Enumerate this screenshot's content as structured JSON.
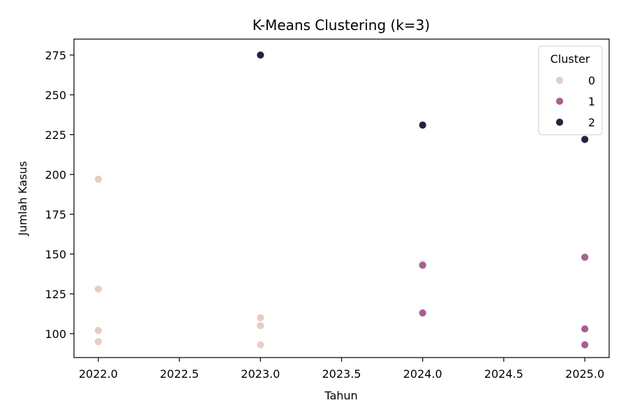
{
  "chart_data": {
    "type": "scatter",
    "title": "K-Means Clustering (k=3)",
    "xlabel": "Tahun",
    "ylabel": "Jumlah Kasus",
    "xlim": [
      2021.85,
      2025.15
    ],
    "ylim": [
      85,
      285
    ],
    "xticks": [
      2022.0,
      2022.5,
      2023.0,
      2023.5,
      2024.0,
      2024.5,
      2025.0
    ],
    "xtick_labels": [
      "2022.0",
      "2022.5",
      "2023.0",
      "2023.5",
      "2024.0",
      "2024.5",
      "2025.0"
    ],
    "yticks": [
      100,
      125,
      150,
      175,
      200,
      225,
      250,
      275
    ],
    "ytick_labels": [
      "100",
      "125",
      "150",
      "175",
      "200",
      "225",
      "250",
      "275"
    ],
    "grid": false,
    "legend": {
      "title": "Cluster",
      "placement": "top-right",
      "entries": [
        "0",
        "1",
        "2"
      ]
    },
    "series": [
      {
        "name": "0",
        "color": "#e8cdc5",
        "points": [
          {
            "x": 2022,
            "y": 197
          },
          {
            "x": 2022,
            "y": 128
          },
          {
            "x": 2022,
            "y": 102
          },
          {
            "x": 2022,
            "y": 95
          },
          {
            "x": 2023,
            "y": 110
          },
          {
            "x": 2023,
            "y": 105
          },
          {
            "x": 2023,
            "y": 93
          },
          {
            "x": 2024,
            "y": 144
          }
        ]
      },
      {
        "name": "1",
        "color": "#a5628e",
        "points": [
          {
            "x": 2024,
            "y": 143
          },
          {
            "x": 2024,
            "y": 113
          },
          {
            "x": 2025,
            "y": 148
          },
          {
            "x": 2025,
            "y": 103
          },
          {
            "x": 2025,
            "y": 93
          }
        ]
      },
      {
        "name": "2",
        "color": "#2c1e3d",
        "points": [
          {
            "x": 2023,
            "y": 275
          },
          {
            "x": 2024,
            "y": 231
          },
          {
            "x": 2025,
            "y": 222
          }
        ]
      }
    ]
  }
}
